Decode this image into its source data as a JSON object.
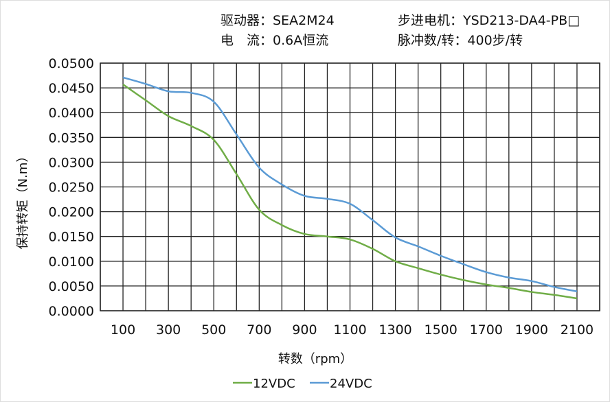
{
  "header": {
    "driver": "驱动器：SEA2M24",
    "current": "电　流：0.6A恒流",
    "motor": "步进电机：YSD213-DA4-PB□",
    "pulses": "脉冲数/转：400步/转"
  },
  "chart_data": {
    "type": "line",
    "xlabel": "转数（rpm）",
    "ylabel": "保持转矩（N.m）",
    "xlim": [
      0,
      2200
    ],
    "ylim": [
      0,
      0.05
    ],
    "grid": true,
    "legend": "bottom",
    "x_ticks": [
      "100",
      "300",
      "500",
      "700",
      "900",
      "1100",
      "1300",
      "1500",
      "1700",
      "1900",
      "2100"
    ],
    "y_ticks": [
      "0.0000",
      "0.0050",
      "0.0100",
      "0.0150",
      "0.0200",
      "0.0250",
      "0.0300",
      "0.0350",
      "0.0400",
      "0.0450",
      "0.0500"
    ],
    "x": [
      100,
      200,
      300,
      400,
      500,
      600,
      700,
      800,
      900,
      1000,
      1100,
      1200,
      1300,
      1400,
      1500,
      1600,
      1700,
      1800,
      1900,
      2000,
      2100
    ],
    "series": [
      {
        "name": "12VDC",
        "color": "#70ad47",
        "values": [
          0.0457,
          0.0425,
          0.0393,
          0.0373,
          0.0345,
          0.0276,
          0.0204,
          0.0173,
          0.0155,
          0.015,
          0.0144,
          0.0125,
          0.01,
          0.0086,
          0.0073,
          0.0062,
          0.0053,
          0.0046,
          0.0038,
          0.0032,
          0.0025
        ]
      },
      {
        "name": "24VDC",
        "color": "#5b9bd5",
        "values": [
          0.0471,
          0.0458,
          0.0443,
          0.044,
          0.0422,
          0.0356,
          0.0289,
          0.0255,
          0.0232,
          0.0226,
          0.0216,
          0.0183,
          0.0148,
          0.013,
          0.0111,
          0.0094,
          0.0078,
          0.0067,
          0.006,
          0.0048,
          0.0039
        ]
      }
    ]
  }
}
